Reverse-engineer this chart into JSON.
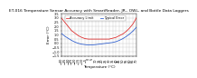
{
  "title": "ET-016 Temperature Sensor Accuracy with SmartReader, JR., OWL, and Bottle Data Loggers",
  "xlabel": "Temperature (°C)",
  "ylabel": "Error (°C)",
  "x_min": -40,
  "x_max": 70,
  "y_min": -1.5,
  "y_max": 3.5,
  "x_ticks": [
    -40,
    -35,
    -30,
    -25,
    -20,
    -15,
    -10,
    -5,
    0,
    5,
    10,
    15,
    20,
    25,
    30,
    35,
    40,
    45,
    50,
    55,
    60,
    65,
    70
  ],
  "y_ticks": [
    -1.5,
    -1.0,
    -0.5,
    0.0,
    0.5,
    1.0,
    1.5,
    2.0,
    2.5,
    3.0,
    3.5
  ],
  "red_line_color": "#dd2222",
  "blue_line_color": "#2255cc",
  "background_color": "#ffffff",
  "grid_color": "#bbbbbb",
  "title_fontsize": 3.2,
  "axis_fontsize": 3.0,
  "tick_fontsize": 2.5,
  "legend_fontsize": 2.5,
  "legend_label_red": "Accuracy Limit",
  "legend_label_blue": "Typical Error",
  "red_x": [
    -40,
    -35,
    -30,
    -25,
    -20,
    -15,
    -10,
    -5,
    0,
    5,
    10,
    15,
    20,
    25,
    30,
    35,
    40,
    45,
    50,
    55,
    60,
    65,
    70
  ],
  "red_y": [
    3.0,
    2.5,
    2.0,
    1.5,
    1.2,
    0.9,
    0.7,
    0.55,
    0.5,
    0.5,
    0.5,
    0.5,
    0.5,
    0.5,
    0.5,
    0.6,
    0.7,
    0.9,
    1.1,
    1.4,
    1.8,
    2.3,
    3.0
  ],
  "blue_x": [
    -40,
    -35,
    -30,
    -25,
    -20,
    -15,
    -10,
    -5,
    0,
    5,
    10,
    15,
    20,
    25,
    30,
    35,
    40,
    45,
    50,
    55,
    60,
    65,
    70
  ],
  "blue_y": [
    1.2,
    0.85,
    0.6,
    0.35,
    0.15,
    0.0,
    -0.1,
    -0.15,
    -0.2,
    -0.18,
    -0.15,
    -0.1,
    -0.05,
    0.0,
    0.05,
    0.1,
    0.2,
    0.35,
    0.55,
    0.8,
    1.1,
    1.45,
    1.9
  ]
}
